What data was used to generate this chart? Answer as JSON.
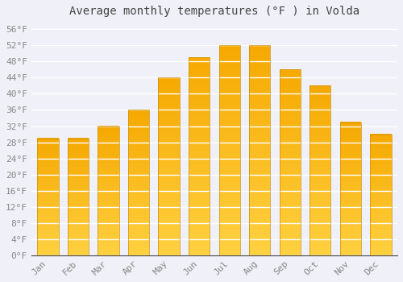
{
  "title": "Average monthly temperatures (°F ) in Volda",
  "months": [
    "Jan",
    "Feb",
    "Mar",
    "Apr",
    "May",
    "Jun",
    "Jul",
    "Aug",
    "Sep",
    "Oct",
    "Nov",
    "Dec"
  ],
  "values": [
    29,
    29,
    32,
    36,
    44,
    49,
    52,
    52,
    46,
    42,
    33,
    30
  ],
  "bar_color_bottom": "#FFD040",
  "bar_color_top": "#F5A800",
  "ylim": [
    0,
    58
  ],
  "yticks": [
    0,
    4,
    8,
    12,
    16,
    20,
    24,
    28,
    32,
    36,
    40,
    44,
    48,
    52,
    56
  ],
  "ytick_labels": [
    "0°F",
    "4°F",
    "8°F",
    "12°F",
    "16°F",
    "20°F",
    "24°F",
    "28°F",
    "32°F",
    "36°F",
    "40°F",
    "44°F",
    "48°F",
    "52°F",
    "56°F"
  ],
  "background_color": "#F0F0F8",
  "grid_color": "#FFFFFF",
  "bar_edge_color": "#C8900A",
  "font_family": "monospace",
  "title_fontsize": 10,
  "tick_fontsize": 8,
  "tick_color": "#888888",
  "title_color": "#444444",
  "bar_width": 0.7
}
